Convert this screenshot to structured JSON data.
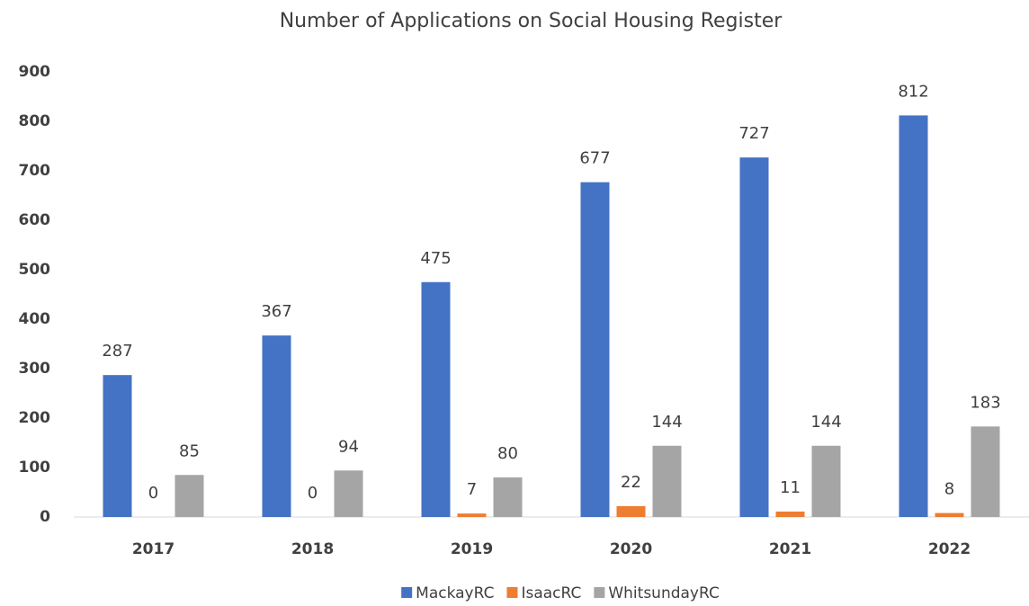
{
  "chart_data": {
    "type": "bar",
    "title": "Number of Applications on Social Housing Register",
    "categories": [
      "2017",
      "2018",
      "2019",
      "2020",
      "2021",
      "2022"
    ],
    "series": [
      {
        "name": "MackayRC",
        "color": "#4472c4",
        "values": [
          287,
          367,
          475,
          677,
          727,
          812
        ]
      },
      {
        "name": "IsaacRC",
        "color": "#ed7d31",
        "values": [
          0,
          0,
          7,
          22,
          11,
          8
        ]
      },
      {
        "name": "WhitsundayRC",
        "color": "#a5a5a5",
        "values": [
          85,
          94,
          80,
          144,
          144,
          183
        ]
      }
    ],
    "ylim": [
      0,
      900
    ],
    "yticks": [
      0,
      100,
      200,
      300,
      400,
      500,
      600,
      700,
      800,
      900
    ],
    "grid": false,
    "legend": "bottom"
  }
}
